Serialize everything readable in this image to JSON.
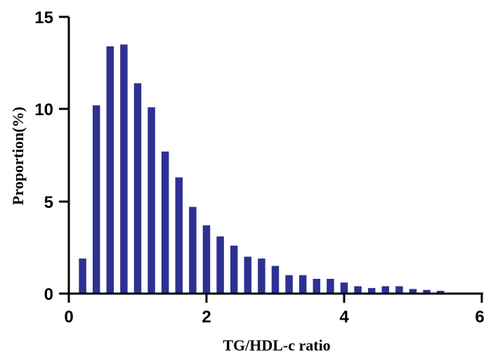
{
  "chart_data": {
    "type": "bar",
    "title": "",
    "xlabel": "TG/HDL-c ratio",
    "ylabel": "Proportion(%)",
    "xlim": [
      0,
      6
    ],
    "ylim": [
      0,
      15
    ],
    "x_ticks": [
      "0",
      "2",
      "4",
      "6"
    ],
    "y_ticks": [
      "0",
      "5",
      "10",
      "15"
    ],
    "bar_color": "#2e3192",
    "grid": false,
    "bin_width": 0.2,
    "x": [
      0.2,
      0.4,
      0.6,
      0.8,
      1.0,
      1.2,
      1.4,
      1.6,
      1.8,
      2.0,
      2.2,
      2.4,
      2.6,
      2.8,
      3.0,
      3.2,
      3.4,
      3.6,
      3.8,
      4.0,
      4.2,
      4.4,
      4.6,
      4.8,
      5.0,
      5.2,
      5.4
    ],
    "values": [
      1.9,
      10.2,
      13.4,
      13.5,
      11.4,
      10.1,
      7.7,
      6.3,
      4.7,
      3.7,
      3.1,
      2.6,
      2.0,
      1.9,
      1.5,
      1.0,
      1.0,
      0.8,
      0.8,
      0.6,
      0.4,
      0.3,
      0.4,
      0.4,
      0.25,
      0.2,
      0.15
    ]
  }
}
